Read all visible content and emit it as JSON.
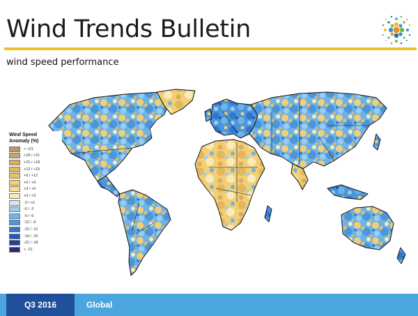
{
  "header": {
    "title": "Wind Trends Bulletin",
    "subtitle": "wind speed performance"
  },
  "map": {
    "description_icon": "world-anomaly-map",
    "legend": {
      "title_line1": "Wind Speed",
      "title_line2": "Anomaly (%)",
      "items": [
        {
          "label": "> +21",
          "color": "#b8956a"
        },
        {
          "label": "+18 / +21",
          "color": "#c8a270"
        },
        {
          "label": "+15 / +18",
          "color": "#d8ae64"
        },
        {
          "label": "+12 / +15",
          "color": "#e3b75e"
        },
        {
          "label": "+9 / +12",
          "color": "#ecc15c"
        },
        {
          "label": "+6 / +9",
          "color": "#f2cf76"
        },
        {
          "label": "+3 / +6",
          "color": "#f6dc94"
        },
        {
          "label": "+0 / +3",
          "color": "#faeab8"
        },
        {
          "label": "-3 / +0",
          "color": "#cfe7f6"
        },
        {
          "label": "-6 / -3",
          "color": "#9ccdee"
        },
        {
          "label": "-9 / -6",
          "color": "#6fb3e6"
        },
        {
          "label": "-12 / -9",
          "color": "#4b95da"
        },
        {
          "label": "-15 / -12",
          "color": "#2f76cc"
        },
        {
          "label": "-18 / -15",
          "color": "#2458b4"
        },
        {
          "label": "-21 / -18",
          "color": "#263f97"
        },
        {
          "label": "< -21",
          "color": "#2b2a72"
        }
      ]
    }
  },
  "footer": {
    "period": "Q3 2016",
    "region": "Global"
  },
  "colors": {
    "accent_rule": "#f2c02c",
    "footer_dark": "#20509a",
    "footer_light": "#4ba6de"
  }
}
